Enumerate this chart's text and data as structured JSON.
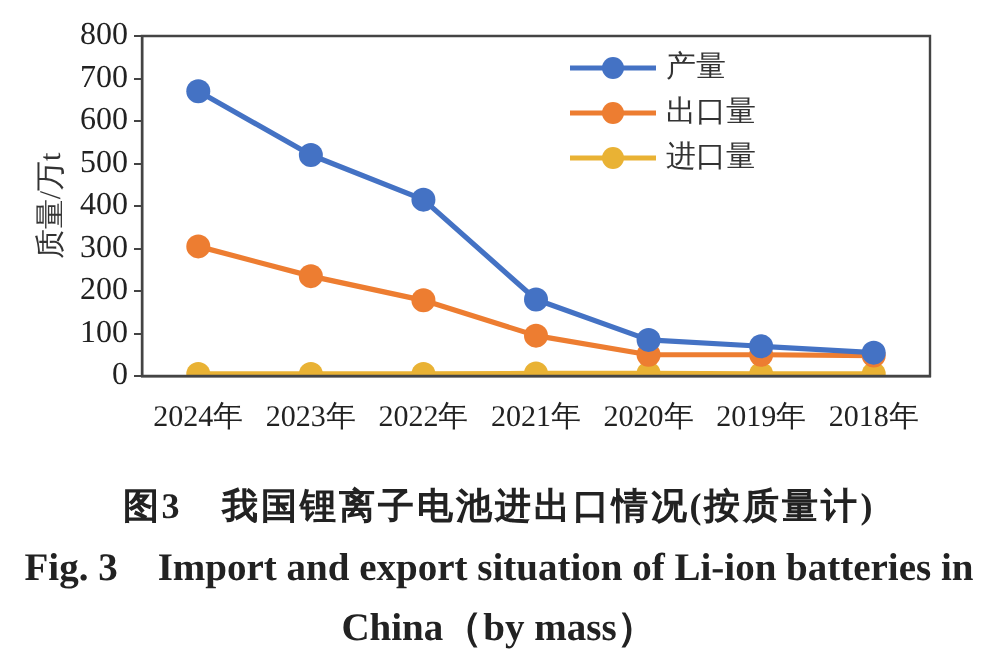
{
  "chart_data": {
    "type": "line",
    "title": "图3　我国锂离子电池进出口情况(按质量计)",
    "subtitle": "Fig. 3　Import and export situation of Li-ion batteries in China（by mass）",
    "ylabel": "质量/万t",
    "categories": [
      "2024年",
      "2023年",
      "2022年",
      "2021年",
      "2020年",
      "2019年",
      "2018年"
    ],
    "series": [
      {
        "name": "产量",
        "color": "#4472c4",
        "values": [
          670,
          520,
          415,
          180,
          85,
          70,
          55
        ]
      },
      {
        "name": "出口量",
        "color": "#ed7d31",
        "values": [
          305,
          235,
          178,
          95,
          50,
          50,
          48
        ]
      },
      {
        "name": "进口量",
        "color": "#e9b234",
        "values": [
          5,
          5,
          5,
          6,
          6,
          5,
          5
        ]
      }
    ],
    "ylim": [
      0,
      800
    ],
    "yticks": [
      0,
      100,
      200,
      300,
      400,
      500,
      600,
      700,
      800
    ],
    "grid": false,
    "legend": "top right",
    "marker": "circle",
    "line_style": "solid"
  }
}
